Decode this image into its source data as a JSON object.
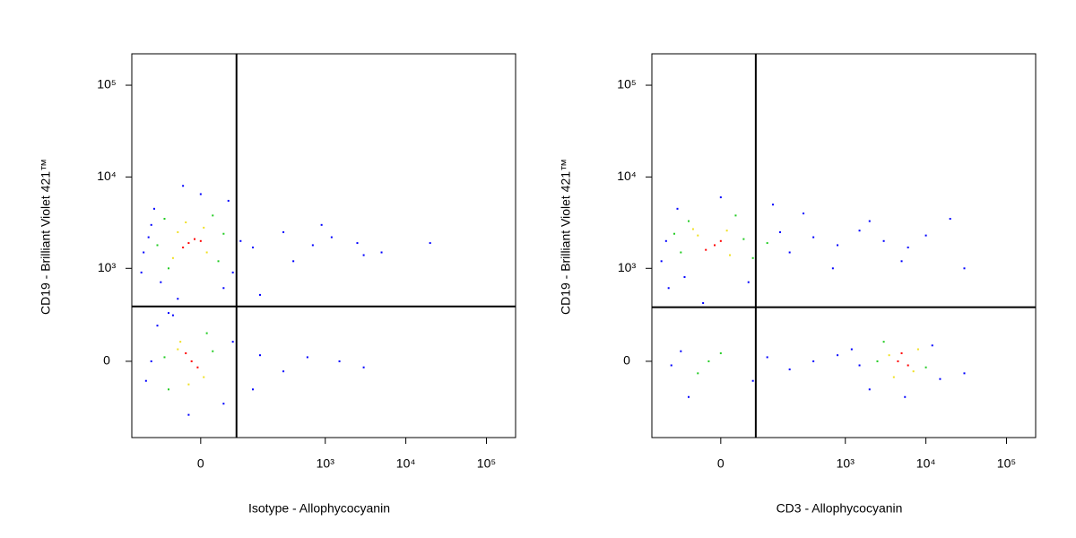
{
  "chart_data": [
    {
      "type": "scatter",
      "xscale": "biexponential",
      "yscale": "biexponential",
      "x_label": "Isotype - Allophycocyanin",
      "y_label": "CD19 - Brilliant Violet 421™",
      "xlim": [
        -200,
        230000
      ],
      "ylim": [
        -650,
        220000
      ],
      "xticks": [
        0,
        {
          "value": 1000,
          "label": "10³"
        },
        {
          "value": 10000,
          "label": "10⁴"
        },
        {
          "value": 100000,
          "label": "10⁵"
        }
      ],
      "yticks": [
        0,
        {
          "value": 1000,
          "label": "10³"
        },
        {
          "value": 10000,
          "label": "10⁴"
        },
        {
          "value": 100000,
          "label": "10⁵"
        }
      ],
      "gates": {
        "x": 69,
        "y": 364
      },
      "series": [
        {
          "color": "#0000ff",
          "x": [
            -120,
            -100,
            50,
            -140,
            60,
            -80,
            0,
            -30,
            40,
            -110,
            80,
            -150,
            120,
            300,
            700,
            1200,
            2500,
            5000,
            20000,
            400,
            900,
            3000,
            150,
            -40,
            -60,
            -110,
            -90,
            40,
            -130,
            60,
            -20,
            -50,
            150,
            300,
            600,
            1500,
            3000,
            120
          ],
          "y": [
            2200,
            4500,
            5500,
            1500,
            900,
            700,
            6500,
            8000,
            600,
            3000,
            2000,
            900,
            1700,
            2500,
            1800,
            2200,
            1900,
            1500,
            1900,
            1200,
            3000,
            1400,
            500,
            450,
            300,
            0,
            200,
            -250,
            -100,
            100,
            -350,
            280,
            30,
            -50,
            20,
            0,
            -30,
            -150
          ]
        },
        {
          "color": "#22cc22",
          "x": [
            -70,
            30,
            -90,
            20,
            -60,
            40,
            -70,
            20,
            -60,
            10
          ],
          "y": [
            3500,
            1200,
            1800,
            3800,
            1000,
            2400,
            20,
            50,
            -150,
            150
          ]
        },
        {
          "color": "#f0e020",
          "x": [
            -40,
            10,
            -50,
            5,
            -25,
            -40,
            5,
            -20,
            -35
          ],
          "y": [
            2500,
            1500,
            1300,
            2800,
            3200,
            60,
            -80,
            -120,
            100
          ]
        },
        {
          "color": "#ff0000",
          "x": [
            -20,
            -10,
            -30,
            0,
            -15,
            -5,
            -25
          ],
          "y": [
            1900,
            2100,
            1700,
            2000,
            0,
            -30,
            40
          ]
        }
      ]
    },
    {
      "type": "scatter",
      "xscale": "biexponential",
      "yscale": "biexponential",
      "x_label": "CD3 - Allophycocyanin",
      "y_label": "CD19 - Brilliant Violet 421™",
      "xlim": [
        -200,
        230000
      ],
      "ylim": [
        -650,
        220000
      ],
      "xticks": [
        0,
        {
          "value": 1000,
          "label": "10³"
        },
        {
          "value": 10000,
          "label": "10⁴"
        },
        {
          "value": 100000,
          "label": "10⁵"
        }
      ],
      "yticks": [
        0,
        {
          "value": 1000,
          "label": "10³"
        },
        {
          "value": 10000,
          "label": "10⁴"
        },
        {
          "value": 100000,
          "label": "10⁵"
        }
      ],
      "gates": {
        "x": 67,
        "y": 355
      },
      "series": [
        {
          "color": "#0000ff",
          "x": [
            -130,
            -150,
            -90,
            150,
            200,
            400,
            800,
            1500,
            3000,
            6000,
            10000,
            20000,
            30000,
            -70,
            0,
            50,
            300,
            700,
            2000,
            5000,
            -120,
            120,
            -30,
            1500,
            800,
            400,
            200,
            100,
            60,
            -80,
            -110,
            12000,
            15000,
            2000,
            -60,
            30000,
            1200,
            5500
          ],
          "y": [
            2000,
            1200,
            4500,
            2500,
            1500,
            2200,
            1800,
            2600,
            2000,
            1700,
            2300,
            3500,
            1000,
            800,
            6000,
            700,
            4000,
            1000,
            3300,
            1200,
            600,
            5000,
            400,
            -20,
            30,
            0,
            -40,
            20,
            -100,
            50,
            -20,
            80,
            -90,
            -150,
            -200,
            -60,
            60,
            -200
          ]
        },
        {
          "color": "#22cc22",
          "x": [
            -80,
            40,
            -60,
            60,
            -100,
            25,
            100,
            2500,
            10000,
            -20,
            0,
            -40,
            3000
          ],
          "y": [
            1500,
            2100,
            3300,
            1300,
            2400,
            3800,
            1900,
            0,
            -30,
            0,
            40,
            -60,
            100
          ]
        },
        {
          "color": "#f0e020",
          "x": [
            -40,
            15,
            -50,
            10,
            3500,
            7000,
            4000,
            8000
          ],
          "y": [
            2300,
            1400,
            2700,
            2600,
            30,
            -50,
            -80,
            60
          ]
        },
        {
          "color": "#ff0000",
          "x": [
            -10,
            0,
            -25,
            4500,
            6000,
            5000
          ],
          "y": [
            1800,
            2000,
            1600,
            0,
            -20,
            40
          ]
        }
      ]
    }
  ]
}
